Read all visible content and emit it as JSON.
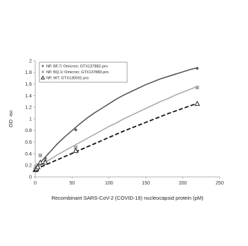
{
  "chart_data": {
    "type": "line",
    "title": "",
    "xlabel": "Recombinant SARS-CoV-2 (COVID-19) nucleocapsid protein (pM)",
    "ylabel": "OD",
    "ylabel_subscript": "450",
    "xlim": [
      0,
      250
    ],
    "ylim": [
      0,
      2
    ],
    "x_ticks": [
      0,
      50,
      100,
      150,
      200,
      250
    ],
    "y_ticks": [
      0,
      0.2,
      0.4,
      0.6,
      0.8,
      1,
      1.2,
      1.4,
      1.6,
      1.8,
      2
    ],
    "x_tick_labels": [
      "0",
      "50",
      "100",
      "150",
      "200",
      "250"
    ],
    "y_tick_labels": [
      "0",
      "0.2",
      "0.4",
      "0.6",
      "0.8",
      "1",
      "1.2",
      "1.4",
      "1.6",
      "1.8",
      "2"
    ],
    "grid": false,
    "legend_position": "top-left",
    "series": [
      {
        "name": "NP, BF.7/ Omicron; GTX137882-pro",
        "color": "#555555",
        "marker": "diamond",
        "line_style": "solid",
        "x": [
          0.2,
          0.9,
          1.7,
          3.4,
          6.9,
          13.7,
          54.9,
          219.6
        ],
        "y": [
          0.12,
          0.14,
          0.16,
          0.19,
          0.23,
          0.32,
          0.81,
          1.87
        ],
        "fit_x": [
          0,
          10,
          20,
          30,
          40,
          50,
          60,
          70,
          80,
          90,
          100,
          110,
          120,
          130,
          140,
          150,
          160,
          170,
          180,
          190,
          200,
          210,
          220
        ],
        "fit_y": [
          0.13,
          0.29,
          0.43,
          0.57,
          0.69,
          0.8,
          0.91,
          1.01,
          1.1,
          1.18,
          1.26,
          1.34,
          1.41,
          1.47,
          1.53,
          1.59,
          1.64,
          1.69,
          1.73,
          1.77,
          1.81,
          1.85,
          1.88
        ]
      },
      {
        "name": "NP, BQ.1/ Omicron; GTX137883-pro",
        "color": "#aaaaaa",
        "marker": "square",
        "line_style": "solid",
        "x": [
          0.2,
          0.9,
          1.7,
          3.4,
          6.9,
          13.7,
          54.9,
          219.6
        ],
        "y": [
          0.14,
          0.15,
          0.17,
          0.2,
          0.37,
          0.27,
          0.51,
          1.54
        ],
        "fit_x": [
          0,
          10,
          20,
          30,
          40,
          50,
          60,
          70,
          80,
          90,
          100,
          110,
          120,
          130,
          140,
          150,
          160,
          170,
          180,
          190,
          200,
          210,
          220
        ],
        "fit_y": [
          0.14,
          0.22,
          0.3,
          0.38,
          0.45,
          0.52,
          0.59,
          0.66,
          0.73,
          0.8,
          0.87,
          0.93,
          1.0,
          1.06,
          1.12,
          1.18,
          1.24,
          1.3,
          1.35,
          1.41,
          1.46,
          1.51,
          1.56
        ]
      },
      {
        "name": "NP, WT; GTX135592-pro",
        "color": "#111111",
        "marker": "triangle",
        "line_style": "dashed",
        "x": [
          0.2,
          0.9,
          1.7,
          3.4,
          6.9,
          13.7,
          54.9,
          219.6
        ],
        "y": [
          0.12,
          0.13,
          0.14,
          0.17,
          0.25,
          0.25,
          0.45,
          1.26
        ],
        "fit_x": [
          0,
          20,
          40,
          60,
          80,
          100,
          120,
          140,
          160,
          180,
          200,
          220
        ],
        "fit_y": [
          0.13,
          0.24,
          0.35,
          0.46,
          0.57,
          0.68,
          0.79,
          0.89,
          0.99,
          1.09,
          1.18,
          1.27
        ]
      }
    ]
  }
}
